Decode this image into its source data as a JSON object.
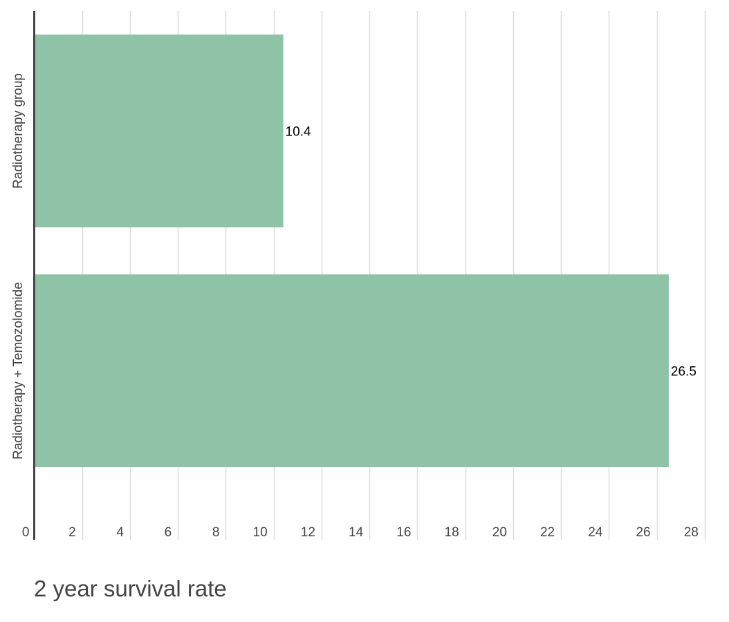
{
  "chart_data": {
    "type": "bar",
    "orientation": "horizontal",
    "title": "2 year survival rate",
    "xlabel": "",
    "ylabel": "",
    "categories": [
      "Radiotherapy group",
      "Radiotherapy + Temozolomide"
    ],
    "values": [
      10.4,
      26.5
    ],
    "data_labels": [
      "10.4",
      "26.5"
    ],
    "xlim": [
      0,
      28
    ],
    "xticks": [
      0,
      2,
      4,
      6,
      8,
      10,
      12,
      14,
      16,
      18,
      20,
      22,
      24,
      26,
      28
    ],
    "grid": true,
    "legend": "none",
    "colors": {
      "bar": "#8fc3a7",
      "grid": "#dddddd",
      "axis": "#444444",
      "text": "#444444",
      "data_label": "#000000"
    }
  }
}
